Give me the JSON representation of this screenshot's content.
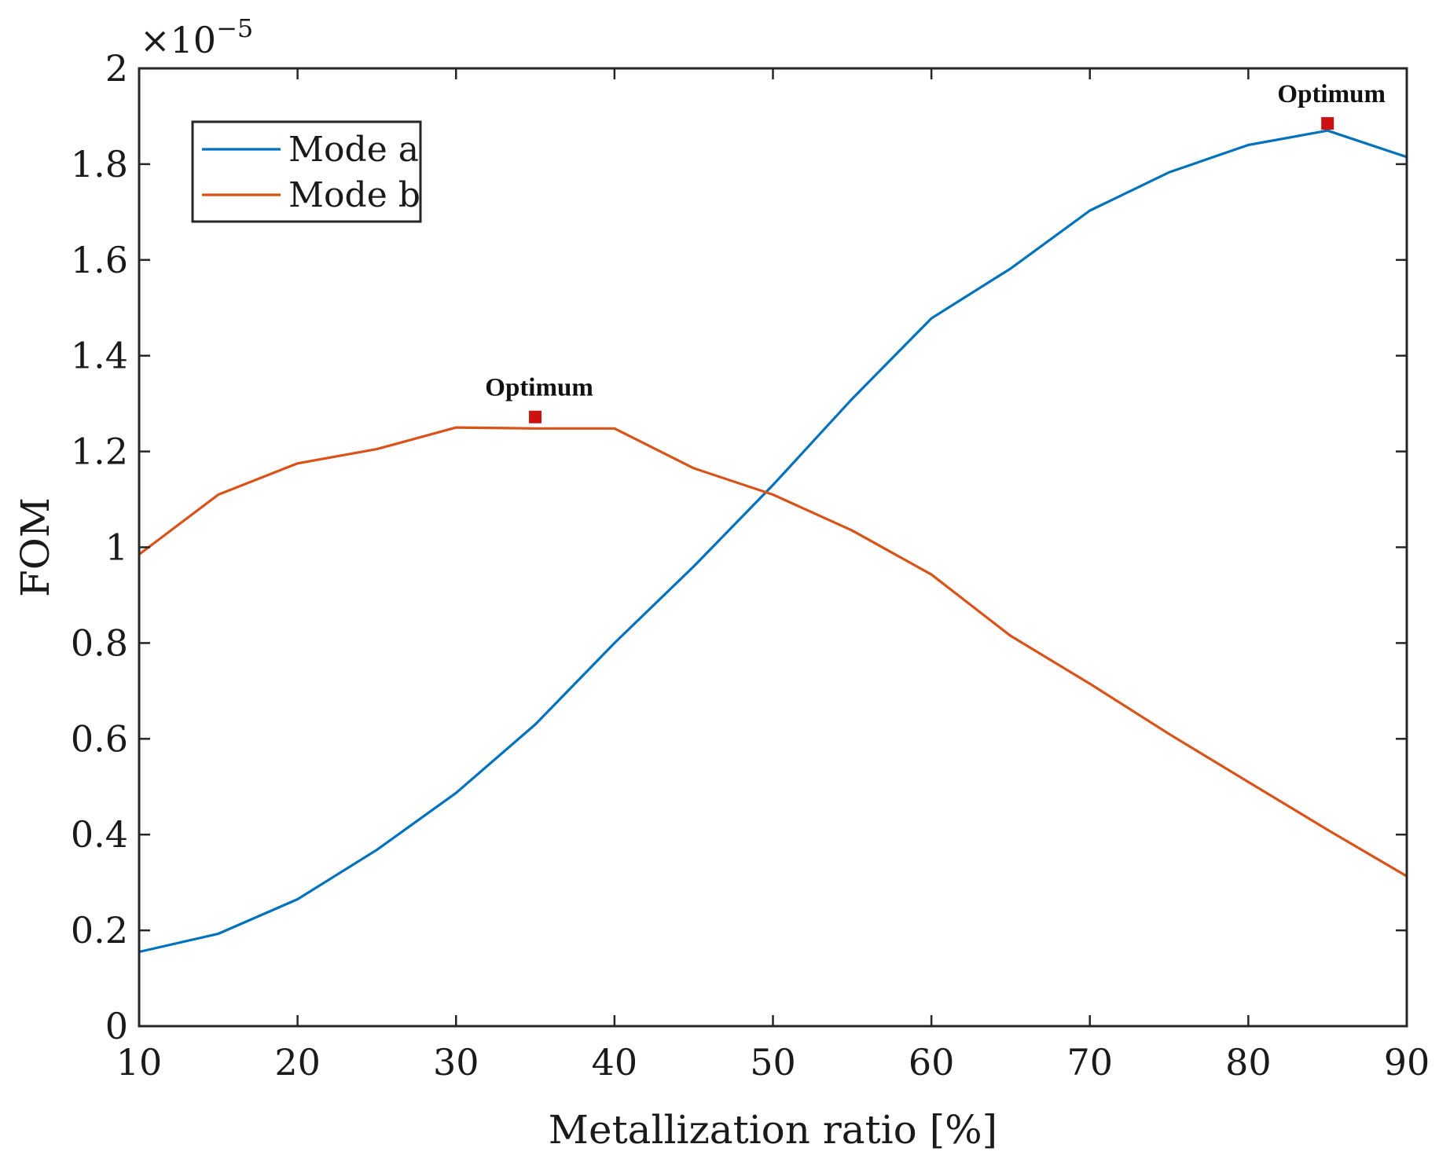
{
  "chart_data": {
    "type": "line",
    "title": "",
    "xlabel": "Metallization ratio [%]",
    "ylabel": "FOM",
    "xlim": [
      10,
      90
    ],
    "ylim": [
      0,
      2
    ],
    "xticks": [
      10,
      20,
      30,
      40,
      50,
      60,
      70,
      80,
      90
    ],
    "yticks": [
      0,
      0.2,
      0.4,
      0.6,
      0.8,
      1,
      1.2,
      1.4,
      1.6,
      1.8,
      2
    ],
    "ytick_labels": [
      "0",
      "0.2",
      "0.4",
      "0.6",
      "0.8",
      "1",
      "1.2",
      "1.4",
      "1.6",
      "1.8",
      "2"
    ],
    "y_multiplier": {
      "base": "×10",
      "exponent": "−5"
    },
    "grid": false,
    "legend_position": "top-left",
    "x": [
      10,
      15,
      20,
      25,
      30,
      35,
      40,
      45,
      50,
      55,
      60,
      65,
      70,
      75,
      80,
      85,
      90
    ],
    "series": [
      {
        "name": "Mode a",
        "color": "#0072BD",
        "values": [
          0.155,
          0.193,
          0.265,
          0.368,
          0.487,
          0.63,
          0.8,
          0.96,
          1.13,
          1.31,
          1.478,
          1.582,
          1.703,
          1.783,
          1.84,
          1.87,
          1.815
        ]
      },
      {
        "name": "Mode b",
        "color": "#D95319",
        "values": [
          0.985,
          1.11,
          1.175,
          1.205,
          1.25,
          1.248,
          1.248,
          1.165,
          1.11,
          1.035,
          0.943,
          0.815,
          0.715,
          0.61,
          0.51,
          0.41,
          0.313
        ]
      }
    ],
    "annotations": [
      {
        "text": "Optimum",
        "x": 35,
        "y": 1.272,
        "marker_color": "#CC1111"
      },
      {
        "text": "Optimum",
        "x": 85,
        "y": 1.885,
        "marker_color": "#CC1111"
      }
    ]
  }
}
